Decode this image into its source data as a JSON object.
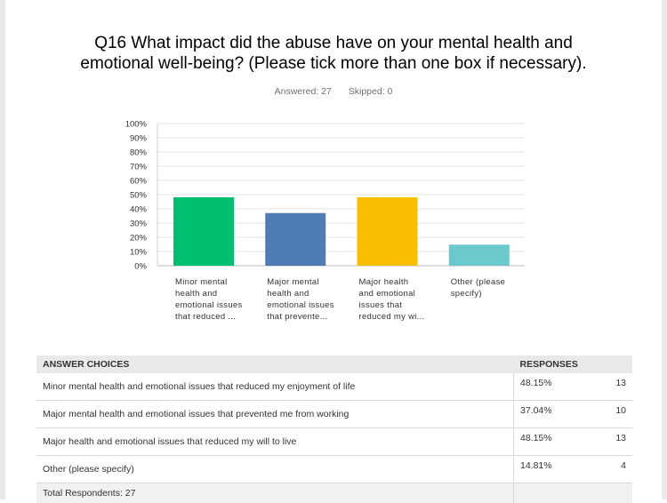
{
  "question": {
    "line1": "Q16 What impact did the abuse have on your mental health and",
    "line2": "emotional well-being? (Please tick more than one box if necessary)."
  },
  "stats": {
    "answered": "Answered: 27",
    "skipped": "Skipped: 0"
  },
  "chart_data": {
    "type": "bar",
    "categories": [
      [
        "Minor mental",
        "health and",
        "emotional issues",
        "that reduced ..."
      ],
      [
        "Major mental",
        "health and",
        "emotional issues",
        "that prevente..."
      ],
      [
        "Major health",
        "and emotional",
        "issues that",
        "reduced my wi..."
      ],
      [
        "Other (please",
        "specify)"
      ]
    ],
    "values": [
      48.15,
      37.04,
      48.15,
      14.81
    ],
    "colors": [
      "#00bf6f",
      "#507cb6",
      "#f9be00",
      "#6bc8cd"
    ],
    "ylim": [
      0,
      100
    ],
    "yticks": [
      "0%",
      "10%",
      "20%",
      "30%",
      "40%",
      "50%",
      "60%",
      "70%",
      "80%",
      "90%",
      "100%"
    ],
    "grid": true,
    "title": "",
    "xlabel": "",
    "ylabel": ""
  },
  "table": {
    "headers": {
      "choices": "ANSWER CHOICES",
      "responses": "RESPONSES"
    },
    "rows": [
      {
        "choice": "Minor mental health and emotional issues that reduced my enjoyment of life",
        "percent": "48.15%",
        "count": "13"
      },
      {
        "choice": "Major mental health and emotional issues that prevented me from working",
        "percent": "37.04%",
        "count": "10"
      },
      {
        "choice": "Major health and emotional issues that reduced my will to live",
        "percent": "48.15%",
        "count": "13"
      },
      {
        "choice": "Other (please specify)",
        "percent": "14.81%",
        "count": "4"
      }
    ],
    "total": "Total Respondents: 27"
  }
}
